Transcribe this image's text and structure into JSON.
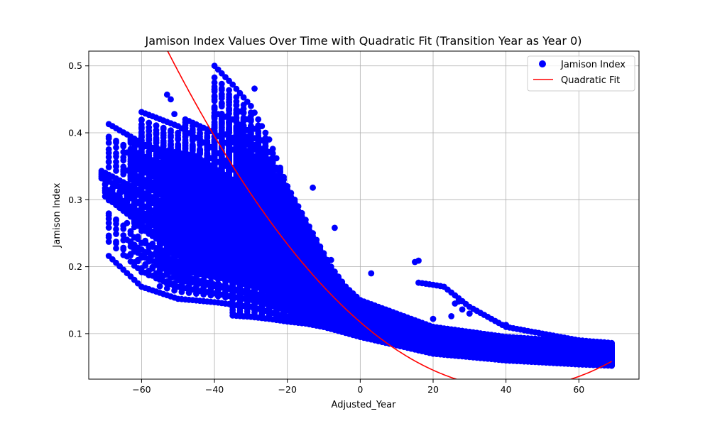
{
  "chart_data": {
    "type": "scatter",
    "title": "Jamison Index Values Over Time with Quadratic Fit (Transition Year as Year 0)",
    "xlabel": "Adjusted_Year",
    "ylabel": "Jamison Index",
    "xlim": [
      -74.5,
      76.5
    ],
    "ylim": [
      0.032,
      0.522
    ],
    "xticks": [
      -60,
      -40,
      -20,
      0,
      20,
      40,
      60
    ],
    "yticks": [
      0.1,
      0.2,
      0.3,
      0.4,
      0.5
    ],
    "xtick_labels": [
      "−60",
      "−40",
      "−20",
      "0",
      "20",
      "40",
      "60"
    ],
    "ytick_labels": [
      "0.1",
      "0.2",
      "0.3",
      "0.4",
      "0.5"
    ],
    "grid": true,
    "legend_position": "top-right",
    "series": [
      {
        "name": "Jamison Index",
        "kind": "scatter",
        "color": "#0000ff",
        "trajectories": [
          {
            "x": [
              -71,
              -60,
              -50,
              -40,
              -30,
              -20,
              -10,
              0,
              20,
              40,
              60,
              69
            ],
            "y": [
              0.343,
              0.312,
              0.285,
              0.255,
              0.215,
              0.17,
              0.135,
              0.11,
              0.083,
              0.07,
              0.064,
              0.06
            ]
          },
          {
            "x": [
              -71,
              -60,
              -50,
              -40,
              -30,
              -20,
              -10,
              0,
              20,
              40,
              60,
              69
            ],
            "y": [
              0.332,
              0.305,
              0.272,
              0.24,
              0.2,
              0.16,
              0.125,
              0.105,
              0.08,
              0.068,
              0.062,
              0.058
            ]
          },
          {
            "x": [
              -70,
              -60,
              -50,
              -40,
              -30,
              -20,
              -10,
              0,
              20,
              40,
              60,
              69
            ],
            "y": [
              0.305,
              0.262,
              0.23,
              0.205,
              0.18,
              0.155,
              0.125,
              0.1,
              0.075,
              0.065,
              0.058,
              0.055
            ]
          },
          {
            "x": [
              -69,
              -60,
              -50,
              -40,
              -30,
              -20,
              -10,
              0,
              20,
              40,
              60,
              69
            ],
            "y": [
              0.216,
              0.17,
              0.152,
              0.147,
              0.14,
              0.125,
              0.11,
              0.095,
              0.07,
              0.06,
              0.055,
              0.053
            ]
          },
          {
            "x": [
              -69,
              -60,
              -50,
              -40,
              -30,
              -20,
              -10,
              0,
              20,
              40,
              60,
              69
            ],
            "y": [
              0.413,
              0.385,
              0.355,
              0.32,
              0.27,
              0.21,
              0.165,
              0.13,
              0.098,
              0.085,
              0.078,
              0.075
            ]
          },
          {
            "x": [
              -60,
              -50,
              -40,
              -30,
              -20,
              -10,
              0,
              20,
              40,
              60,
              69
            ],
            "y": [
              0.431,
              0.41,
              0.375,
              0.32,
              0.25,
              0.18,
              0.14,
              0.11,
              0.095,
              0.088,
              0.085
            ]
          },
          {
            "x": [
              -64,
              -55,
              -45,
              -35,
              -25,
              -15,
              0,
              20,
              40,
              60,
              69
            ],
            "y": [
              0.29,
              0.27,
              0.255,
              0.232,
              0.2,
              0.16,
              0.115,
              0.085,
              0.072,
              0.066,
              0.063
            ]
          },
          {
            "x": [
              -62,
              -55,
              -45,
              -35,
              -25,
              -15,
              0,
              20,
              40,
              60,
              69
            ],
            "y": [
              0.265,
              0.238,
              0.21,
              0.19,
              0.175,
              0.15,
              0.112,
              0.082,
              0.068,
              0.061,
              0.058
            ]
          },
          {
            "x": [
              -62,
              -55,
              -45,
              -35,
              -25,
              -15,
              0,
              20,
              40,
              60,
              69
            ],
            "y": [
              0.36,
              0.345,
              0.33,
              0.3,
              0.25,
              0.19,
              0.125,
              0.09,
              0.077,
              0.07,
              0.067
            ]
          },
          {
            "x": [
              -63,
              -55,
              -45,
              -35,
              -25,
              -15,
              0,
              20,
              40,
              60,
              69
            ],
            "y": [
              0.385,
              0.375,
              0.365,
              0.33,
              0.27,
              0.2,
              0.13,
              0.094,
              0.08,
              0.073,
              0.07
            ]
          },
          {
            "x": [
              -55,
              -45,
              -35,
              -25,
              -15,
              0,
              20,
              40,
              60,
              69
            ],
            "y": [
              0.2,
              0.19,
              0.18,
              0.165,
              0.145,
              0.108,
              0.078,
              0.064,
              0.057,
              0.054
            ]
          },
          {
            "x": [
              -53,
              -45,
              -35,
              -25,
              -15,
              0,
              20,
              40,
              60,
              69
            ],
            "y": [
              0.225,
              0.205,
              0.185,
              0.165,
              0.14,
              0.1,
              0.072,
              0.06,
              0.054,
              0.052
            ]
          },
          {
            "x": [
              -48,
              -40,
              -30,
              -20,
              -10,
              0,
              20,
              40,
              60,
              69
            ],
            "y": [
              0.42,
              0.4,
              0.35,
              0.28,
              0.2,
              0.15,
              0.11,
              0.095,
              0.088,
              0.085
            ]
          },
          {
            "x": [
              -40,
              -35,
              -30,
              -25,
              -20,
              -15,
              -10,
              0,
              20,
              40,
              60,
              69
            ],
            "y": [
              0.5,
              0.472,
              0.44,
              0.39,
              0.32,
              0.24,
              0.18,
              0.13,
              0.1,
              0.088,
              0.082,
              0.08
            ]
          },
          {
            "x": [
              -40,
              -35,
              -30,
              -25,
              -20,
              -10,
              0,
              20,
              40,
              60,
              69
            ],
            "y": [
              0.43,
              0.42,
              0.4,
              0.36,
              0.3,
              0.2,
              0.14,
              0.105,
              0.09,
              0.084,
              0.082
            ]
          },
          {
            "x": [
              -42,
              -35,
              -28,
              -20,
              -10,
              0,
              20,
              40,
              60,
              69
            ],
            "y": [
              0.365,
              0.345,
              0.3,
              0.22,
              0.16,
              0.125,
              0.092,
              0.078,
              0.071,
              0.068
            ]
          },
          {
            "x": [
              -35,
              -30,
              -25,
              -20,
              -15,
              -10,
              0,
              20,
              40,
              60,
              69
            ],
            "y": [
              0.127,
              0.125,
              0.122,
              0.118,
              0.115,
              0.11,
              0.1,
              0.075,
              0.062,
              0.056,
              0.054
            ]
          },
          {
            "x": [
              -38,
              -30,
              -22,
              -15,
              -8,
              0,
              20,
              40,
              60,
              69
            ],
            "y": [
              0.4,
              0.38,
              0.34,
              0.27,
              0.2,
              0.14,
              0.103,
              0.088,
              0.081,
              0.078
            ]
          },
          {
            "x": [
              -33,
              -28,
              -22,
              -15,
              -8,
              0,
              20,
              40,
              60,
              69
            ],
            "y": [
              0.35,
              0.33,
              0.3,
              0.25,
              0.185,
              0.135,
              0.098,
              0.084,
              0.077,
              0.074
            ]
          },
          {
            "x": [
              -10,
              -5,
              0,
              10,
              20,
              40,
              60,
              69
            ],
            "y": [
              0.21,
              0.165,
              0.14,
              0.115,
              0.1,
              0.09,
              0.085,
              0.083
            ]
          },
          {
            "x": [
              16,
              20,
              23,
              30,
              40,
              60,
              69
            ],
            "y": [
              0.176,
              0.173,
              0.17,
              0.14,
              0.11,
              0.09,
              0.086
            ]
          }
        ],
        "points": [
          {
            "x": -53,
            "y": 0.457
          },
          {
            "x": -52,
            "y": 0.45
          },
          {
            "x": -51,
            "y": 0.428
          },
          {
            "x": -29,
            "y": 0.466
          },
          {
            "x": -13,
            "y": 0.318
          },
          {
            "x": -7,
            "y": 0.258
          },
          {
            "x": -8,
            "y": 0.21
          },
          {
            "x": 3,
            "y": 0.19
          },
          {
            "x": 15,
            "y": 0.207
          },
          {
            "x": 16,
            "y": 0.209
          },
          {
            "x": 26,
            "y": 0.145
          },
          {
            "x": 27,
            "y": 0.148
          },
          {
            "x": 28,
            "y": 0.136
          },
          {
            "x": 30,
            "y": 0.13
          },
          {
            "x": 25,
            "y": 0.126
          },
          {
            "x": 20,
            "y": 0.122
          },
          {
            "x": 0,
            "y": 0.14
          },
          {
            "x": -2,
            "y": 0.155
          },
          {
            "x": 40,
            "y": 0.113
          },
          {
            "x": 67,
            "y": 0.085
          },
          {
            "x": 64,
            "y": 0.087
          }
        ]
      },
      {
        "name": "Quadratic Fit",
        "kind": "line",
        "color": "#ff0000",
        "equation": {
          "a": 5.59e-05,
          "b": -0.004707,
          "c": 0.1172
        },
        "x_range": [
          -71,
          69
        ]
      }
    ]
  }
}
